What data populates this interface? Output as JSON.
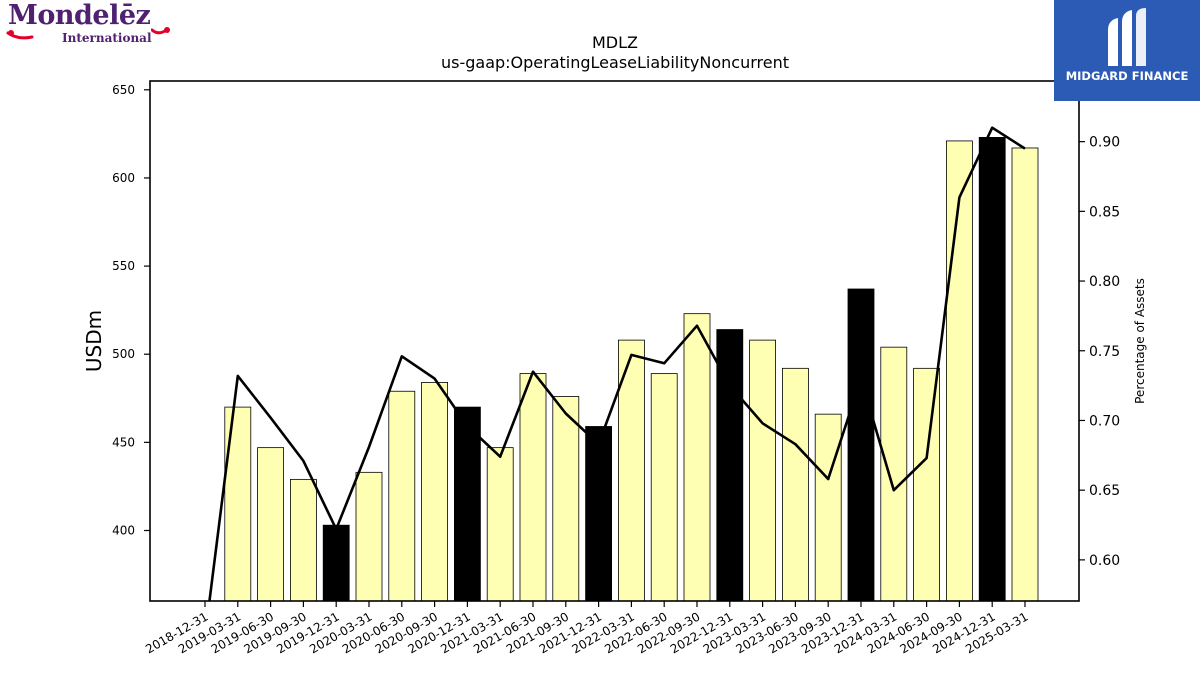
{
  "logos": {
    "left_brand": "Mondelēz",
    "left_sub": "International",
    "right_name": "MIDGARD FINANCE"
  },
  "colors": {
    "bar_fill": "#ffffb3",
    "bar_highlight": "#000000",
    "line": "#000000",
    "logo_purple": "#4f2170",
    "logo_red": "#e4002b",
    "logo_blue": "#2c5bb5"
  },
  "chart_data": {
    "type": "bar",
    "title": "MDLZ",
    "subtitle": "us-gaap:OperatingLeaseLiabilityNoncurrent",
    "ylabel": "USDm",
    "y2label": "Percentage of Assets",
    "ylim": [
      360,
      655
    ],
    "y2lim": [
      0.5705,
      0.9435
    ],
    "yticks": [
      400,
      450,
      500,
      550,
      600,
      650
    ],
    "y2ticks": [
      0.6,
      0.65,
      0.7,
      0.75,
      0.8,
      0.85,
      0.9
    ],
    "grid": false,
    "categories": [
      "2018-12-31",
      "2019-03-31",
      "2019-06-30",
      "2019-09-30",
      "2019-12-31",
      "2020-03-31",
      "2020-06-30",
      "2020-09-30",
      "2020-12-31",
      "2021-03-31",
      "2021-06-30",
      "2021-09-30",
      "2021-12-31",
      "2022-03-31",
      "2022-06-30",
      "2022-09-30",
      "2022-12-31",
      "2023-03-31",
      "2023-06-30",
      "2023-09-30",
      "2023-12-31",
      "2024-03-31",
      "2024-06-30",
      "2024-09-30",
      "2024-12-31",
      "2025-03-31"
    ],
    "series": [
      {
        "kind": "bar",
        "axis": "left",
        "values": [
          null,
          470,
          447,
          429,
          403,
          433,
          479,
          484,
          470,
          447,
          489,
          476,
          459,
          508,
          489,
          523,
          514,
          508,
          492,
          466,
          537,
          504,
          492,
          621,
          623,
          617
        ],
        "highlight": [
          false,
          false,
          false,
          false,
          true,
          false,
          false,
          false,
          true,
          false,
          false,
          false,
          true,
          false,
          false,
          false,
          true,
          false,
          false,
          false,
          true,
          false,
          false,
          false,
          true,
          false
        ]
      },
      {
        "kind": "line",
        "axis": "right",
        "values": [
          0.545,
          0.732,
          0.702,
          0.671,
          0.622,
          0.681,
          0.746,
          0.73,
          0.696,
          0.674,
          0.735,
          0.705,
          0.683,
          0.747,
          0.741,
          0.768,
          0.725,
          0.698,
          0.683,
          0.658,
          0.73,
          0.65,
          0.673,
          0.86,
          0.91,
          0.895
        ]
      }
    ]
  }
}
